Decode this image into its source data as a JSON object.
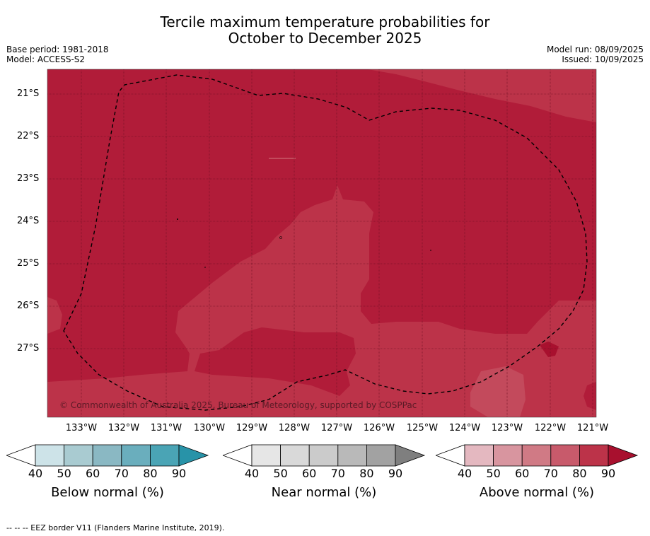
{
  "title": {
    "line1": "Tercile maximum temperature probabilities for",
    "line2": "October to December 2025"
  },
  "meta_left": {
    "base_period": "Base period: 1981-2018",
    "model": "Model: ACCESS-S2"
  },
  "meta_right": {
    "model_run": "Model run: 08/09/2025",
    "issued": "Issued: 10/09/2025"
  },
  "map": {
    "lat_labels": [
      "21°S",
      "22°S",
      "23°S",
      "24°S",
      "25°S",
      "26°S",
      "27°S"
    ],
    "lon_labels": [
      "133°W",
      "132°W",
      "131°W",
      "130°W",
      "129°W",
      "128°W",
      "127°W",
      "126°W",
      "125°W",
      "124°W",
      "123°W",
      "122°W",
      "121°W"
    ],
    "lon_range": [
      -133.8,
      -120.9
    ],
    "lat_range": [
      -28.6,
      -20.4
    ],
    "copyright": "© Commonwealth of Australia 2025, Bureau of Meteorology, supported by COSPPac",
    "colors": {
      "above_80_90": "#b11c39",
      "above_70_80": "#bc3349",
      "land_dot": "#000000"
    },
    "eez_border_style": "dashed"
  },
  "colorbars": [
    {
      "title": "Below normal (%)",
      "ticks": [
        "40",
        "50",
        "60",
        "70",
        "80",
        "90"
      ],
      "colors": [
        "#ffffff",
        "#cde3e8",
        "#a9cbd1",
        "#8ab8c3",
        "#6aaebd",
        "#4aa4b5",
        "#2893a8"
      ]
    },
    {
      "title": "Near normal (%)",
      "ticks": [
        "40",
        "50",
        "60",
        "70",
        "80",
        "90"
      ],
      "colors": [
        "#ffffff",
        "#e6e6e6",
        "#d9d9d9",
        "#cbcbcb",
        "#b9b9b9",
        "#a2a2a2",
        "#7f7f7f"
      ]
    },
    {
      "title": "Above normal (%)",
      "ticks": [
        "40",
        "50",
        "60",
        "70",
        "80",
        "90"
      ],
      "colors": [
        "#ffffff",
        "#e4b8c0",
        "#d8959f",
        "#d07a85",
        "#c85a6b",
        "#bc3349",
        "#a8102e"
      ]
    }
  ],
  "footer": "-- -- -- EEZ border V11 (Flanders Marine Institute, 2019)."
}
